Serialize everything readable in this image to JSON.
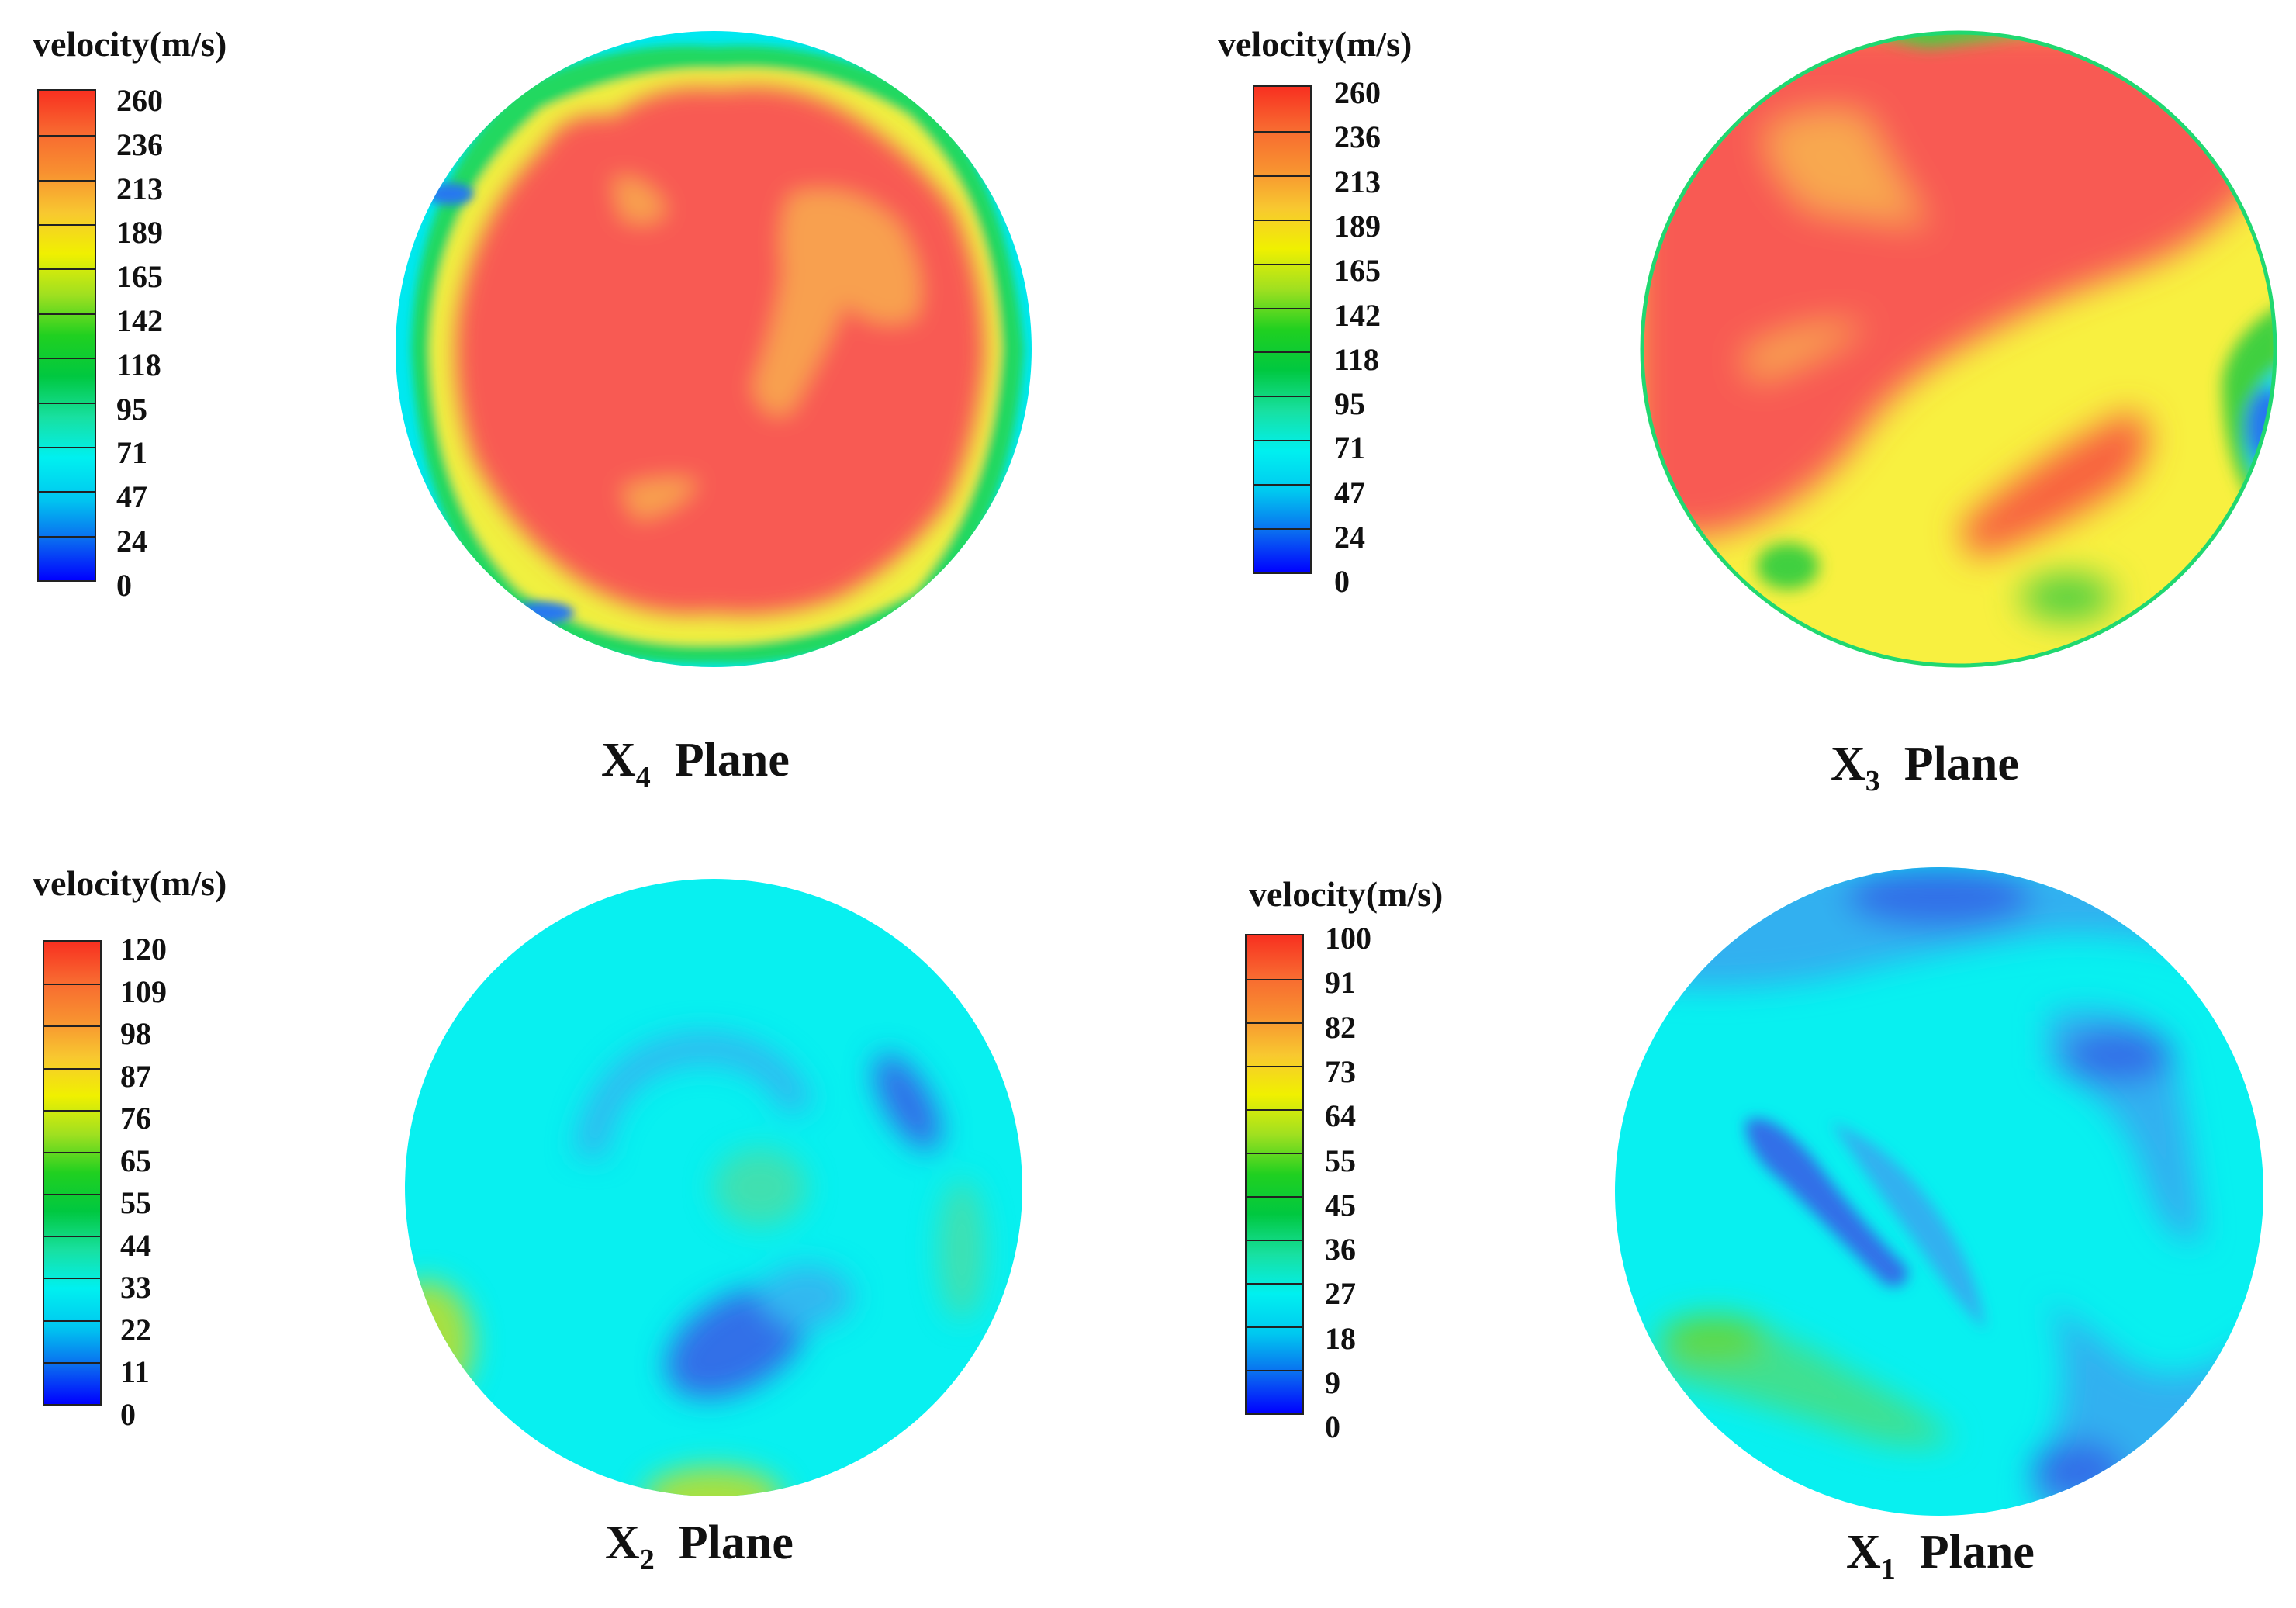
{
  "colormap": [
    "#0000ff",
    "#0a6cf0",
    "#00c8f0",
    "#00f0f0",
    "#18e0a0",
    "#00c840",
    "#20d020",
    "#a0e020",
    "#f0f000",
    "#f8c830",
    "#f89030",
    "#f86830",
    "#f83020"
  ],
  "panels": [
    {
      "id": "x4",
      "colorbar_title": "velocity(m/s)",
      "colorbar_ticks": [
        "260",
        "236",
        "213",
        "189",
        "165",
        "142",
        "118",
        "95",
        "71",
        "47",
        "24",
        "0"
      ],
      "plane_letter": "X",
      "plane_sub": "4",
      "plane_word": "Plane",
      "field_colors": [
        "#f85a52",
        "#f8b050",
        "#f0f040",
        "#20d860",
        "#00e8f0",
        "#2878f0"
      ]
    },
    {
      "id": "x3",
      "colorbar_title": "velocity(m/s)",
      "colorbar_ticks": [
        "260",
        "236",
        "213",
        "189",
        "165",
        "142",
        "118",
        "95",
        "71",
        "47",
        "24",
        "0"
      ],
      "plane_letter": "X",
      "plane_sub": "3",
      "plane_word": "Plane",
      "field_colors": [
        "#f85a52",
        "#f8f040",
        "#f8a850",
        "#40d040",
        "#00e0f0",
        "#2878f0"
      ]
    },
    {
      "id": "x2",
      "colorbar_title": "velocity(m/s)",
      "colorbar_ticks": [
        "120",
        "109",
        "98",
        "87",
        "76",
        "65",
        "55",
        "44",
        "33",
        "22",
        "11",
        "0"
      ],
      "plane_letter": "X",
      "plane_sub": "2",
      "plane_word": "Plane",
      "field_colors": [
        "#08f0f0",
        "#30b8f0",
        "#3070e8",
        "#40e0b0",
        "#a8e040"
      ]
    },
    {
      "id": "x1",
      "colorbar_title": "velocity(m/s)",
      "colorbar_ticks": [
        "100",
        "91",
        "82",
        "73",
        "64",
        "55",
        "45",
        "36",
        "27",
        "18",
        "9",
        "0"
      ],
      "plane_letter": "X",
      "plane_sub": "1",
      "plane_word": "Plane",
      "field_colors": [
        "#08f0f0",
        "#30b0f0",
        "#3070e8",
        "#40e090",
        "#60d840"
      ]
    }
  ]
}
